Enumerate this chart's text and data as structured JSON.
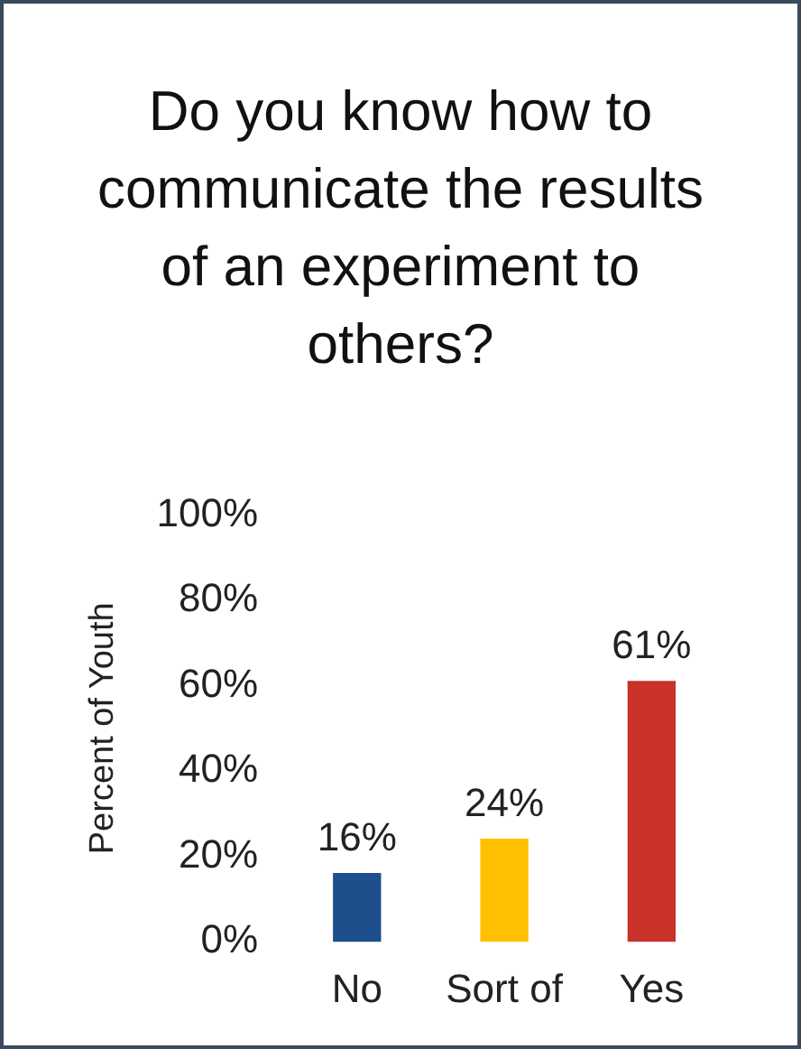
{
  "chart_data": {
    "type": "bar",
    "title": "Do you know how to communicate the results of an experiment to others?",
    "ylabel": "Percent of Youth",
    "categories": [
      "No",
      "Sort of",
      "Yes"
    ],
    "values": [
      16,
      24,
      61
    ],
    "colors": [
      "#1f4e8c",
      "#ffc000",
      "#c83228"
    ],
    "value_labels": [
      "16%",
      "24%",
      "61%"
    ],
    "ylim": [
      0,
      100
    ],
    "yticks": [
      {
        "value": 0,
        "label": "0%"
      },
      {
        "value": 20,
        "label": "20%"
      },
      {
        "value": 40,
        "label": "40%"
      },
      {
        "value": 60,
        "label": "60%"
      },
      {
        "value": 80,
        "label": "80%"
      },
      {
        "value": 100,
        "label": "100%"
      }
    ],
    "grid": false,
    "legend": false
  }
}
